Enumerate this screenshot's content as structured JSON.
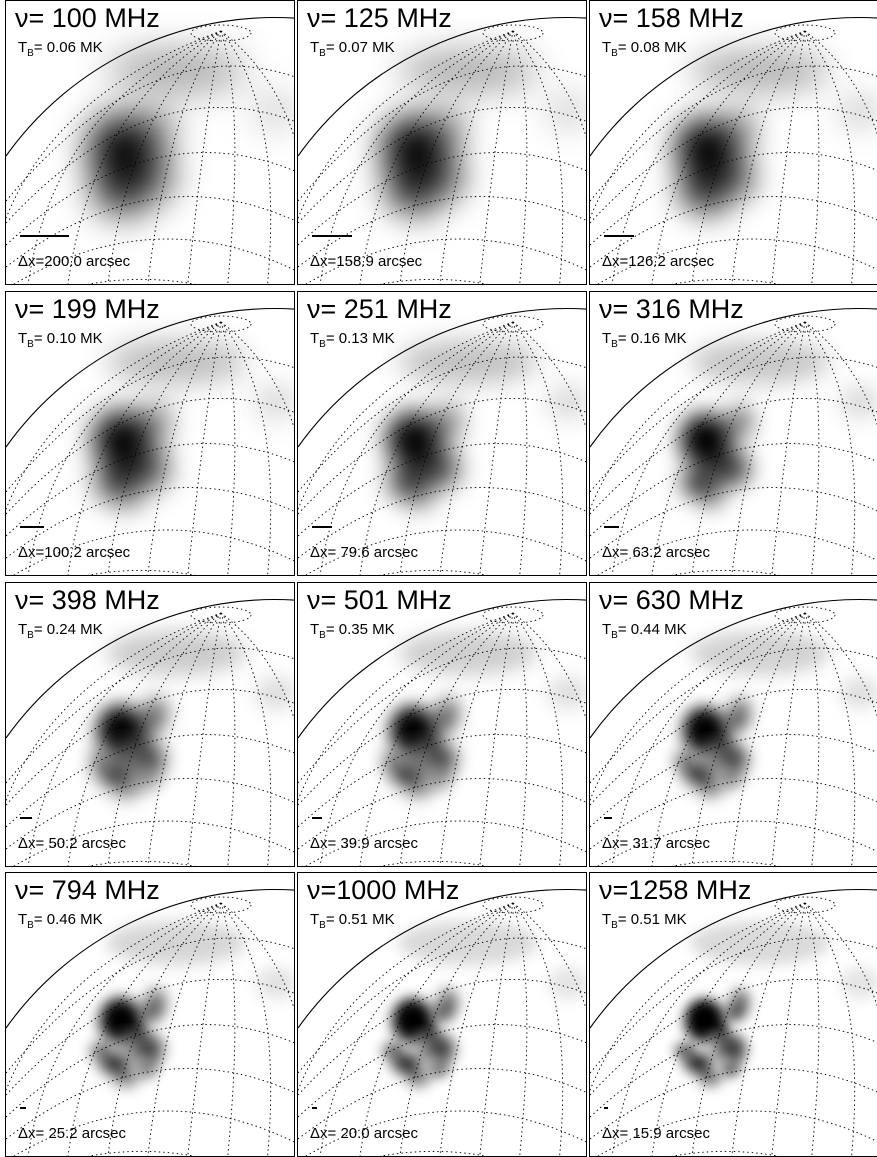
{
  "panels": [
    {
      "freq": "ν= 100 MHz",
      "tb_label": "T",
      "tb_sub": "B",
      "tb_value": "= 0.06 MK",
      "dx": "Δx=200.0 arcsec",
      "scale_bar_fraction": 0.16,
      "smear": 1.0
    },
    {
      "freq": "ν= 125 MHz",
      "tb_label": "T",
      "tb_sub": "B",
      "tb_value": "= 0.07 MK",
      "dx": "Δx=158.9 arcsec",
      "scale_bar_fraction": 0.13,
      "smear": 0.9
    },
    {
      "freq": "ν= 158 MHz",
      "tb_label": "T",
      "tb_sub": "B",
      "tb_value": "= 0.08 MK",
      "dx": "Δx=126.2 arcsec",
      "scale_bar_fraction": 0.1,
      "smear": 0.8
    },
    {
      "freq": "ν= 199 MHz",
      "tb_label": "T",
      "tb_sub": "B",
      "tb_value": "= 0.10 MK",
      "dx": "Δx=100.2 arcsec",
      "scale_bar_fraction": 0.08,
      "smear": 0.7
    },
    {
      "freq": "ν= 251 MHz",
      "tb_label": "T",
      "tb_sub": "B",
      "tb_value": "= 0.13 MK",
      "dx": "Δx= 79.6 arcsec",
      "scale_bar_fraction": 0.065,
      "smear": 0.6
    },
    {
      "freq": "ν= 316 MHz",
      "tb_label": "T",
      "tb_sub": "B",
      "tb_value": "= 0.16 MK",
      "dx": "Δx= 63.2 arcsec",
      "scale_bar_fraction": 0.05,
      "smear": 0.5
    },
    {
      "freq": "ν= 398 MHz",
      "tb_label": "T",
      "tb_sub": "B",
      "tb_value": "= 0.24 MK",
      "dx": "Δx= 50.2 arcsec",
      "scale_bar_fraction": 0.04,
      "smear": 0.42
    },
    {
      "freq": "ν= 501 MHz",
      "tb_label": "T",
      "tb_sub": "B",
      "tb_value": "= 0.35 MK",
      "dx": "Δx= 39.9 arcsec",
      "scale_bar_fraction": 0.032,
      "smear": 0.36
    },
    {
      "freq": "ν= 630 MHz",
      "tb_label": "T",
      "tb_sub": "B",
      "tb_value": "= 0.44 MK",
      "dx": "Δx= 31.7 arcsec",
      "scale_bar_fraction": 0.026,
      "smear": 0.3
    },
    {
      "freq": "ν= 794 MHz",
      "tb_label": "T",
      "tb_sub": "B",
      "tb_value": "= 0.46 MK",
      "dx": "Δx= 25.2 arcsec",
      "scale_bar_fraction": 0.02,
      "smear": 0.25
    },
    {
      "freq": "ν=1000 MHz",
      "tb_label": "T",
      "tb_sub": "B",
      "tb_value": "= 0.51 MK",
      "dx": "Δx= 20.0 arcsec",
      "scale_bar_fraction": 0.016,
      "smear": 0.21
    },
    {
      "freq": "ν=1258 MHz",
      "tb_label": "T",
      "tb_sub": "B",
      "tb_value": "= 0.51 MK",
      "dx": "Δx= 15.9 arcsec",
      "scale_bar_fraction": 0.013,
      "smear": 0.18
    }
  ],
  "colors": {
    "ink": "#000000",
    "background": "#ffffff"
  }
}
